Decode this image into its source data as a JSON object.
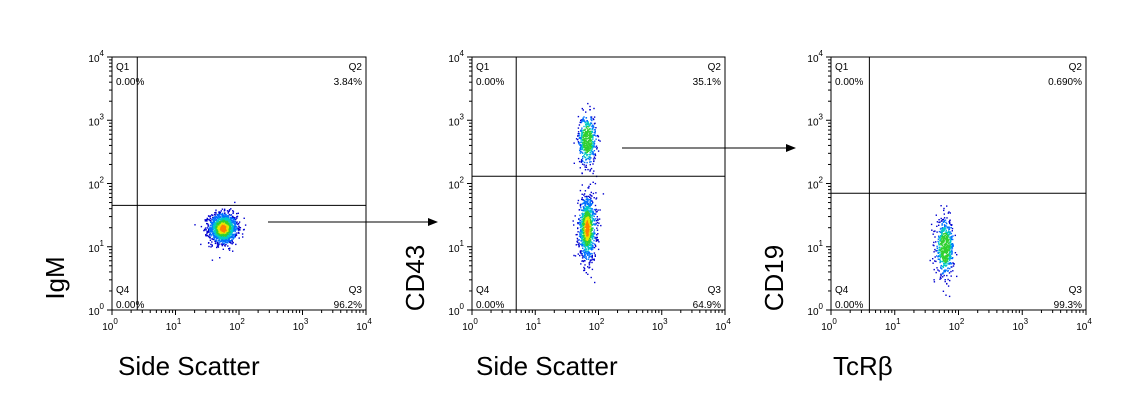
{
  "chart_data": [
    {
      "type": "scatter",
      "xlabel": "Side Scatter",
      "ylabel": "IgM",
      "xscale": "log",
      "yscale": "log",
      "xlim": [
        1,
        10000
      ],
      "ylim": [
        1,
        10000
      ],
      "x_ticks": [
        "10",
        "10",
        "10",
        "10",
        "10"
      ],
      "x_tick_exponents": [
        "0",
        "1",
        "2",
        "3",
        "4"
      ],
      "y_ticks": [
        "10",
        "10",
        "10",
        "10",
        "10"
      ],
      "y_tick_exponents": [
        "0",
        "1",
        "2",
        "3",
        "4"
      ],
      "gate": {
        "x": 2.5,
        "y": 45
      },
      "quadrants": [
        {
          "label": "Q1",
          "value": "0.00%",
          "position": "top-left"
        },
        {
          "label": "Q2",
          "value": "3.84%",
          "position": "top-right"
        },
        {
          "label": "Q3",
          "value": "96.2%",
          "position": "bottom-right"
        },
        {
          "label": "Q4",
          "value": "0.00%",
          "position": "bottom-left"
        }
      ],
      "populations": [
        {
          "x_center": 55,
          "y_center": 20,
          "x_spread": 0.11,
          "y_spread": 0.12,
          "count": 1400
        }
      ],
      "colormap": [
        "#0000d0",
        "#0070ff",
        "#00c8c8",
        "#30d030",
        "#e8e800",
        "#ff8000"
      ]
    },
    {
      "type": "scatter",
      "xlabel": "Side Scatter",
      "ylabel": "CD43",
      "xscale": "log",
      "yscale": "log",
      "xlim": [
        1,
        10000
      ],
      "ylim": [
        1,
        10000
      ],
      "x_ticks": [
        "10",
        "10",
        "10",
        "10",
        "10"
      ],
      "x_tick_exponents": [
        "0",
        "1",
        "2",
        "3",
        "4"
      ],
      "y_ticks": [
        "10",
        "10",
        "10",
        "10",
        "10"
      ],
      "y_tick_exponents": [
        "0",
        "1",
        "2",
        "3",
        "4"
      ],
      "gate": {
        "x": 5,
        "y": 130
      },
      "quadrants": [
        {
          "label": "Q1",
          "value": "0.00%",
          "position": "top-left"
        },
        {
          "label": "Q2",
          "value": "35.1%",
          "position": "top-right"
        },
        {
          "label": "Q3",
          "value": "64.9%",
          "position": "bottom-right"
        },
        {
          "label": "Q4",
          "value": "0.00%",
          "position": "bottom-left"
        }
      ],
      "populations": [
        {
          "x_center": 65,
          "y_center": 500,
          "x_spread": 0.07,
          "y_spread": 0.2,
          "count": 500
        },
        {
          "x_center": 65,
          "y_center": 20,
          "x_spread": 0.07,
          "y_spread": 0.25,
          "count": 1000
        }
      ],
      "colormap": [
        "#0000d0",
        "#0070ff",
        "#00c8c8",
        "#30d030",
        "#e8e800",
        "#ff8000"
      ]
    },
    {
      "type": "scatter",
      "xlabel": "TcRβ",
      "ylabel": "CD19",
      "xscale": "log",
      "yscale": "log",
      "xlim": [
        1,
        10000
      ],
      "ylim": [
        1,
        10000
      ],
      "x_ticks": [
        "10",
        "10",
        "10",
        "10",
        "10"
      ],
      "x_tick_exponents": [
        "0",
        "1",
        "2",
        "3",
        "4"
      ],
      "y_ticks": [
        "10",
        "10",
        "10",
        "10",
        "10"
      ],
      "y_tick_exponents": [
        "0",
        "1",
        "2",
        "3",
        "4"
      ],
      "gate": {
        "x": 4,
        "y": 70
      },
      "quadrants": [
        {
          "label": "Q1",
          "value": "0.00%",
          "position": "top-left"
        },
        {
          "label": "Q2",
          "value": "0.690%",
          "position": "top-right"
        },
        {
          "label": "Q3",
          "value": "99.3%",
          "position": "bottom-right"
        },
        {
          "label": "Q4",
          "value": "0.00%",
          "position": "bottom-left"
        }
      ],
      "populations": [
        {
          "x_center": 60,
          "y_center": 10,
          "x_spread": 0.07,
          "y_spread": 0.22,
          "count": 550
        }
      ],
      "colormap": [
        "#0000d0",
        "#0070ff",
        "#00c8c8",
        "#30d030",
        "#e8e800",
        "#ff8000"
      ]
    }
  ]
}
